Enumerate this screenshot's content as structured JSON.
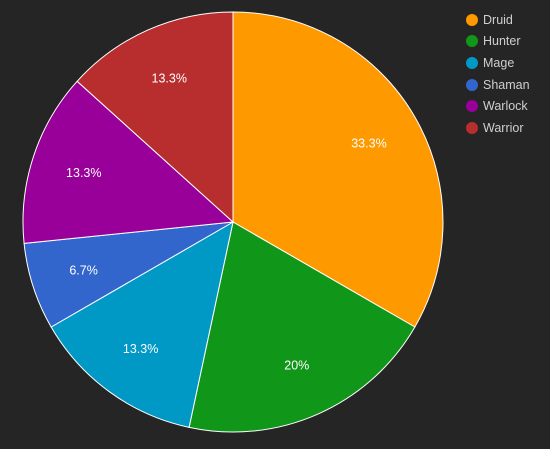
{
  "chart_data": {
    "type": "pie",
    "categories": [
      "Druid",
      "Hunter",
      "Mage",
      "Shaman",
      "Warlock",
      "Warrior"
    ],
    "values": [
      33.3,
      20,
      13.3,
      6.7,
      13.3,
      13.3
    ],
    "data_labels": [
      "33.3%",
      "20%",
      "13.3%",
      "6.7%",
      "13.3%",
      "13.3%"
    ],
    "colors": [
      "#ff9900",
      "#109618",
      "#0099c6",
      "#3366cc",
      "#990099",
      "#b82e2e"
    ],
    "legend_position": "top-right",
    "title": ""
  },
  "legend": {
    "items": [
      {
        "label": "Druid",
        "color": "#ff9900"
      },
      {
        "label": "Hunter",
        "color": "#109618"
      },
      {
        "label": "Mage",
        "color": "#0099c6"
      },
      {
        "label": "Shaman",
        "color": "#3366cc"
      },
      {
        "label": "Warlock",
        "color": "#990099"
      },
      {
        "label": "Warrior",
        "color": "#b82e2e"
      }
    ]
  }
}
